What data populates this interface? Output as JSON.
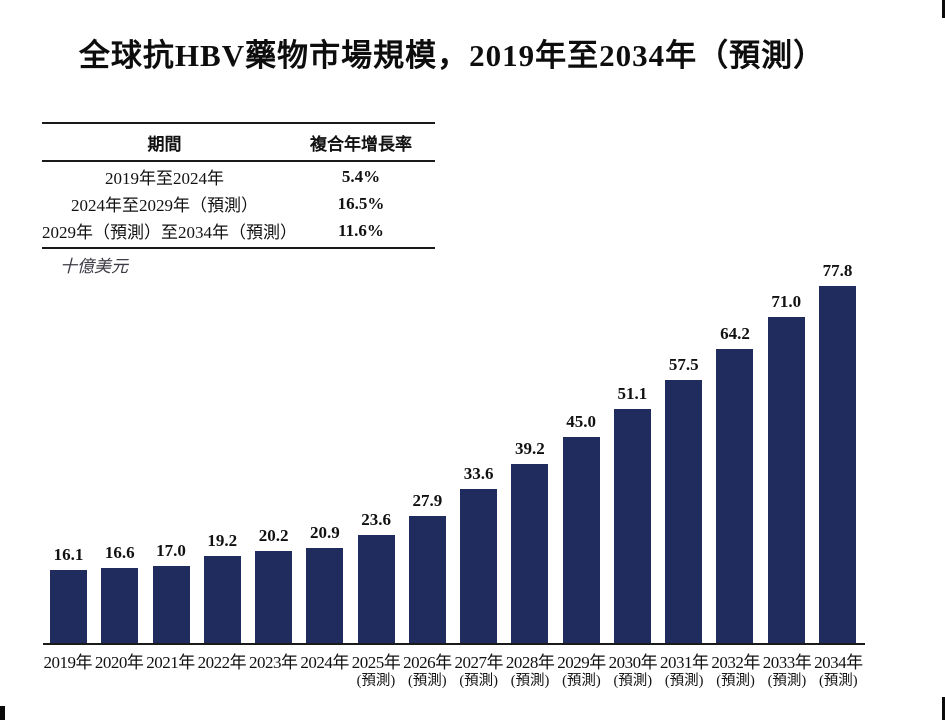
{
  "page": {
    "title": "全球抗HBV藥物市場規模，2019年至2034年（預測）"
  },
  "cagr_table": {
    "headers": {
      "period": "期間",
      "cagr": "複合年增長率"
    },
    "rows": [
      {
        "period": "2019年至2024年",
        "cagr": "5.4%"
      },
      {
        "period": "2024年至2029年（預測）",
        "cagr": "16.5%"
      },
      {
        "period": "2029年（預測）至2034年（預測）",
        "cagr": "11.6%"
      }
    ]
  },
  "chart_data": {
    "type": "bar",
    "title": "全球抗HBV藥物市場規模，2019年至2034年（預測）",
    "unit_label": "十億美元",
    "categories": [
      "2019年",
      "2020年",
      "2021年",
      "2022年",
      "2023年",
      "2024年",
      "2025年",
      "2026年",
      "2027年",
      "2028年",
      "2029年",
      "2030年",
      "2031年",
      "2032年",
      "2033年",
      "2034年"
    ],
    "forecast_label": "(預測)",
    "forecast_start_index": 6,
    "values": [
      16.1,
      16.6,
      17.0,
      19.2,
      20.2,
      20.9,
      23.6,
      27.9,
      33.6,
      39.2,
      45.0,
      51.1,
      57.5,
      64.2,
      71.0,
      77.8
    ],
    "value_labels": [
      "16.1",
      "16.6",
      "17.0",
      "19.2",
      "20.2",
      "20.9",
      "23.6",
      "27.9",
      "33.6",
      "39.2",
      "45.0",
      "51.1",
      "57.5",
      "64.2",
      "71.0",
      "77.8"
    ],
    "xlabel": "",
    "ylabel": "十億美元",
    "ylim": [
      0,
      80
    ],
    "grid": false,
    "legend": "none",
    "value_labels_position": "above bars",
    "bar_color": "#202C5E",
    "axis_line_color": "#1a1a1a"
  }
}
